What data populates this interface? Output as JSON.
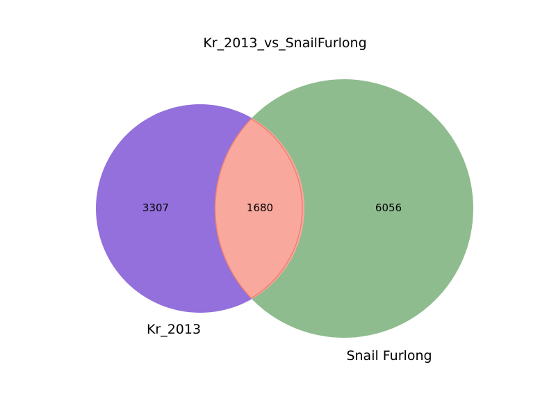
{
  "chart_data": {
    "type": "venn",
    "title": "Kr_2013_vs_SnailFurlong",
    "sets": [
      {
        "name": "Kr_2013",
        "color": "#9370db"
      },
      {
        "name": "Snail Furlong",
        "color": "#8fbc8f"
      }
    ],
    "regions": {
      "only_a": 3307,
      "intersection": 1680,
      "only_b": 6056
    },
    "intersection_color": "#f9a89e",
    "intersection_stroke": "#f08070"
  }
}
